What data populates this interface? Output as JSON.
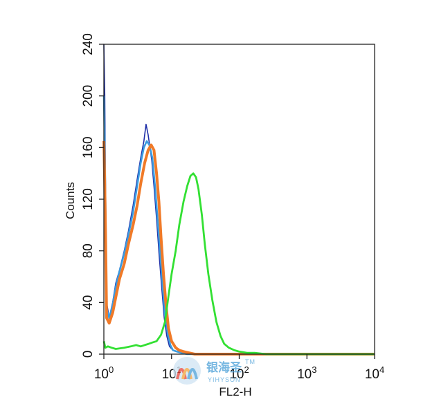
{
  "chart_data": {
    "type": "line",
    "xlabel": "FL2-H",
    "ylabel": "Counts",
    "xscale": "log",
    "xlim": [
      1,
      10000
    ],
    "ylim": [
      0,
      240
    ],
    "xticks": [
      {
        "value": 1,
        "base": "10",
        "exp": "0"
      },
      {
        "value": 10,
        "base": "10",
        "exp": "1"
      },
      {
        "value": 100,
        "base": "10",
        "exp": "2"
      },
      {
        "value": 1000,
        "base": "10",
        "exp": "3"
      },
      {
        "value": 10000,
        "base": "10",
        "exp": "4"
      }
    ],
    "yticks": [
      "0",
      "40",
      "80",
      "120",
      "160",
      "200",
      "240"
    ],
    "grid": false,
    "legend": "none",
    "series": [
      {
        "color": "#1f2fa8",
        "stroke": 1.6,
        "x": [
          1,
          1.03,
          1.06,
          1.1,
          1.2,
          1.35,
          1.5,
          1.7,
          2.0,
          2.3,
          2.7,
          3.1,
          3.5,
          3.9,
          4.2,
          4.5,
          4.8,
          5.1,
          5.5,
          6.0,
          6.6,
          7.2,
          7.8,
          8.5,
          9.3,
          10.5,
          12,
          14,
          17,
          20,
          30,
          100,
          10000
        ],
        "y": [
          240,
          200,
          120,
          40,
          28,
          40,
          55,
          65,
          80,
          95,
          115,
          135,
          152,
          165,
          178,
          170,
          160,
          150,
          130,
          105,
          75,
          50,
          28,
          14,
          6,
          3,
          2,
          1,
          0,
          0,
          0,
          0,
          0
        ]
      },
      {
        "color": "#3a9be0",
        "stroke": 2.6,
        "x": [
          1,
          1.03,
          1.06,
          1.1,
          1.2,
          1.35,
          1.5,
          1.7,
          2.0,
          2.3,
          2.7,
          3.1,
          3.5,
          3.9,
          4.3,
          4.7,
          5.2,
          5.7,
          6.2,
          6.8,
          7.4,
          8.0,
          8.8,
          9.6,
          10.5,
          12,
          14,
          17,
          20,
          30,
          100,
          10000
        ],
        "y": [
          200,
          160,
          110,
          35,
          28,
          38,
          52,
          64,
          78,
          92,
          110,
          130,
          148,
          160,
          165,
          162,
          152,
          130,
          105,
          78,
          52,
          30,
          16,
          7,
          3,
          2,
          1,
          0,
          0,
          0,
          0,
          0
        ]
      },
      {
        "color": "#f07a28",
        "stroke": 4,
        "x": [
          1,
          1.03,
          1.06,
          1.1,
          1.2,
          1.35,
          1.5,
          1.7,
          2.0,
          2.3,
          2.7,
          3.1,
          3.5,
          4.0,
          4.5,
          5.0,
          5.5,
          6.0,
          6.5,
          7.0,
          7.6,
          8.3,
          9.0,
          10,
          11.5,
          13,
          15,
          18,
          22,
          30,
          100,
          10000
        ],
        "y": [
          165,
          130,
          90,
          28,
          24,
          32,
          44,
          58,
          70,
          85,
          100,
          115,
          132,
          148,
          158,
          162,
          158,
          140,
          118,
          90,
          62,
          38,
          20,
          10,
          5,
          3,
          2,
          1,
          0,
          0,
          0,
          0
        ]
      },
      {
        "color": "#33e033",
        "stroke": 2.8,
        "x": [
          1,
          1.05,
          1.15,
          1.3,
          1.5,
          2.0,
          2.5,
          3.0,
          3.5,
          4.0,
          4.6,
          5.2,
          6.0,
          7.0,
          8.0,
          9.0,
          10,
          11.5,
          13,
          15,
          17,
          19,
          21,
          23,
          25,
          28,
          31,
          35,
          40,
          46,
          53,
          60,
          70,
          85,
          100,
          130,
          170,
          250,
          500,
          1000,
          10000
        ],
        "y": [
          10,
          5,
          6,
          5,
          4,
          5,
          6,
          7,
          6,
          7,
          8,
          9,
          10,
          15,
          25,
          45,
          62,
          80,
          100,
          118,
          130,
          138,
          140,
          137,
          128,
          108,
          85,
          62,
          42,
          25,
          14,
          8,
          5,
          3,
          2,
          1,
          1,
          0,
          0,
          0,
          0
        ]
      }
    ]
  },
  "watermark": {
    "brand": "银海圣",
    "tm": "TM",
    "sub": "YIHYSON"
  }
}
